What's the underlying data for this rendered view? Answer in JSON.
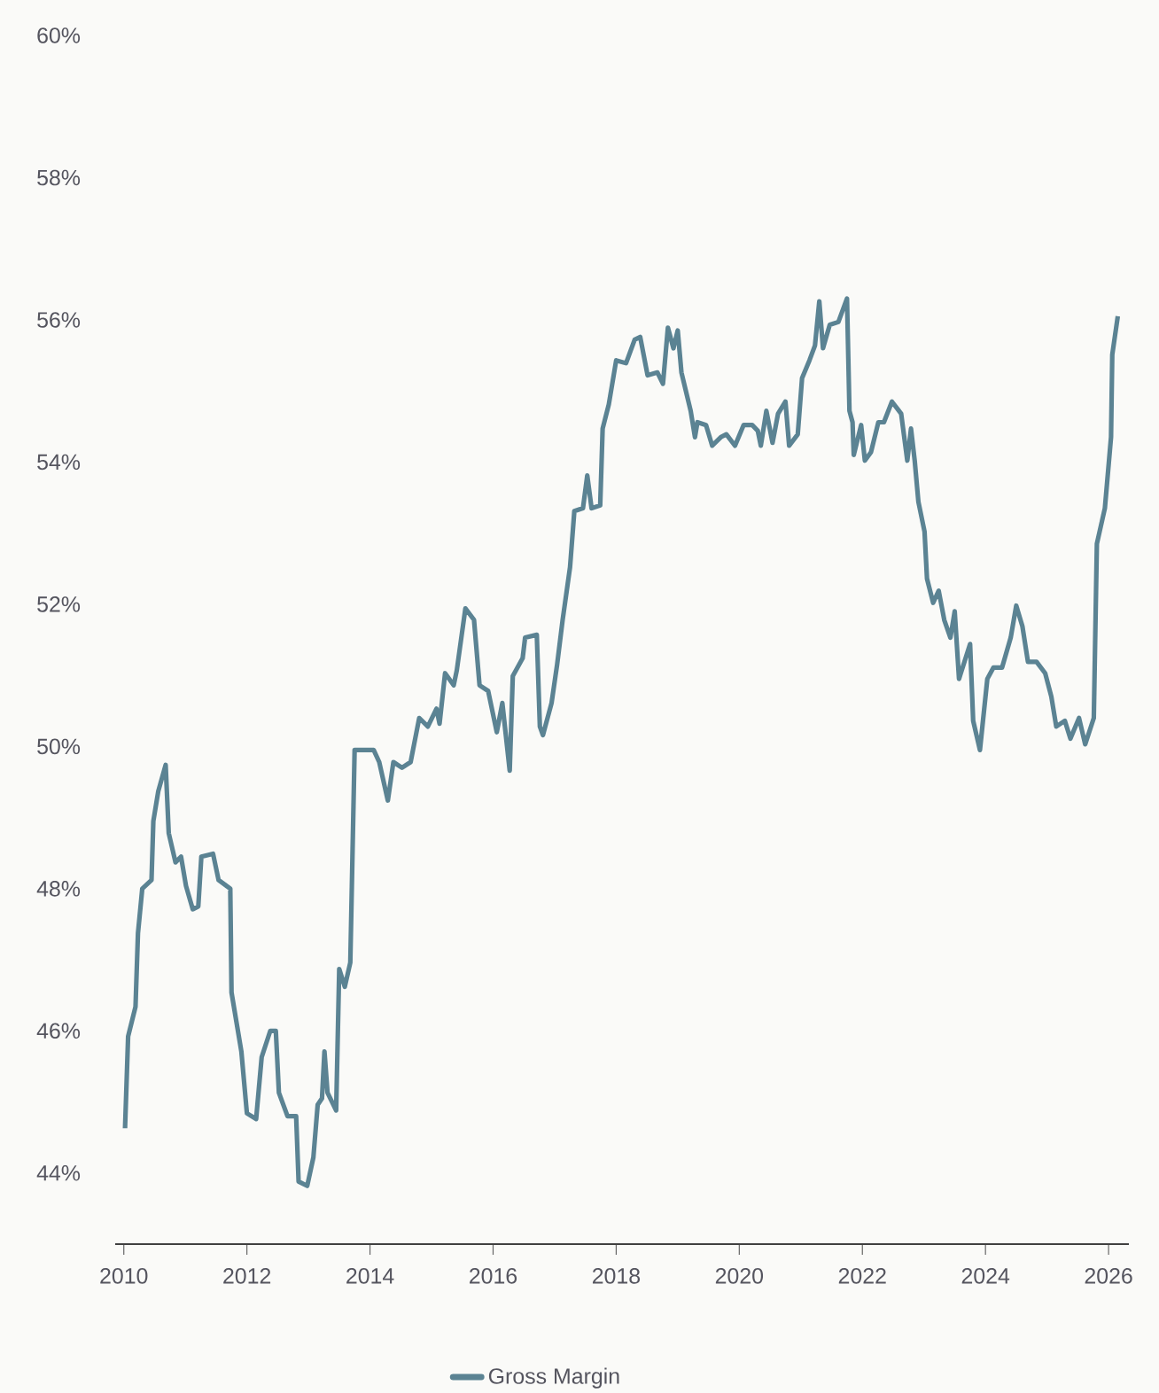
{
  "chart_data": {
    "type": "line",
    "legend": "bottom",
    "line_style": "solid",
    "xlim": [
      2009.86,
      2026.33
    ],
    "ylim": [
      43,
      60
    ],
    "xticks": [
      2010,
      2012,
      2014,
      2016,
      2018,
      2020,
      2022,
      2024,
      2026
    ],
    "yticks": [
      {
        "value": 44,
        "label": "44%"
      },
      {
        "value": 46,
        "label": "46%"
      },
      {
        "value": 48,
        "label": "48%"
      },
      {
        "value": 50,
        "label": "50%"
      },
      {
        "value": 52,
        "label": "52%"
      },
      {
        "value": 54,
        "label": "54%"
      },
      {
        "value": 56,
        "label": "56%"
      },
      {
        "value": 58,
        "label": "58%"
      },
      {
        "value": 60,
        "label": "60%"
      }
    ],
    "series": [
      {
        "name": "Gross Margin",
        "color": "#5b8393",
        "x": [
          2010.02,
          2010.07,
          2010.19,
          2010.23,
          2010.3,
          2010.45,
          2010.48,
          2010.56,
          2010.68,
          2010.73,
          2010.84,
          2010.93,
          2011.01,
          2011.12,
          2011.21,
          2011.26,
          2011.45,
          2011.54,
          2011.73,
          2011.75,
          2011.91,
          2012.0,
          2012.15,
          2012.24,
          2012.38,
          2012.47,
          2012.52,
          2012.66,
          2012.8,
          2012.84,
          2012.98,
          2013.08,
          2013.15,
          2013.22,
          2013.26,
          2013.31,
          2013.45,
          2013.5,
          2013.59,
          2013.68,
          2013.75,
          2014.06,
          2014.15,
          2014.29,
          2014.38,
          2014.52,
          2014.66,
          2014.8,
          2014.94,
          2015.08,
          2015.13,
          2015.22,
          2015.36,
          2015.41,
          2015.55,
          2015.69,
          2015.78,
          2015.92,
          2016.06,
          2016.15,
          2016.27,
          2016.32,
          2016.48,
          2016.52,
          2016.71,
          2016.76,
          2016.81,
          2016.95,
          2017.04,
          2017.13,
          2017.25,
          2017.32,
          2017.46,
          2017.53,
          2017.6,
          2017.74,
          2017.78,
          2017.88,
          2018.0,
          2018.16,
          2018.3,
          2018.39,
          2018.51,
          2018.67,
          2018.76,
          2018.84,
          2018.93,
          2019.0,
          2019.06,
          2019.21,
          2019.28,
          2019.32,
          2019.46,
          2019.56,
          2019.7,
          2019.79,
          2019.93,
          2020.07,
          2020.21,
          2020.3,
          2020.35,
          2020.44,
          2020.54,
          2020.63,
          2020.75,
          2020.81,
          2020.95,
          2021.02,
          2021.14,
          2021.23,
          2021.3,
          2021.36,
          2021.47,
          2021.61,
          2021.75,
          2021.79,
          2021.84,
          2021.86,
          2021.98,
          2022.04,
          2022.14,
          2022.26,
          2022.35,
          2022.48,
          2022.63,
          2022.73,
          2022.79,
          2022.85,
          2022.91,
          2023.01,
          2023.05,
          2023.15,
          2023.24,
          2023.33,
          2023.43,
          2023.5,
          2023.57,
          2023.75,
          2023.8,
          2023.91,
          2024.03,
          2024.13,
          2024.27,
          2024.41,
          2024.5,
          2024.6,
          2024.69,
          2024.83,
          2024.97,
          2025.07,
          2025.15,
          2025.29,
          2025.38,
          2025.52,
          2025.62,
          2025.76,
          2025.81,
          2025.94,
          2026.04,
          2026.06,
          2026.15
        ],
        "values": [
          44.63,
          45.92,
          46.34,
          47.37,
          48.0,
          48.12,
          48.95,
          49.37,
          49.74,
          48.78,
          48.37,
          48.45,
          48.04,
          47.71,
          47.75,
          48.45,
          48.49,
          48.12,
          48.0,
          46.54,
          45.71,
          44.84,
          44.76,
          45.63,
          46.0,
          46.0,
          45.13,
          44.8,
          44.8,
          43.88,
          43.82,
          44.22,
          44.96,
          45.05,
          45.71,
          45.13,
          44.88,
          46.87,
          46.62,
          46.96,
          49.95,
          49.95,
          49.78,
          49.24,
          49.78,
          49.7,
          49.78,
          50.4,
          50.28,
          50.53,
          50.32,
          51.03,
          50.86,
          51.07,
          51.94,
          51.78,
          50.86,
          50.78,
          50.2,
          50.61,
          49.66,
          50.99,
          51.24,
          51.53,
          51.57,
          50.28,
          50.16,
          50.61,
          51.15,
          51.78,
          52.52,
          53.31,
          53.35,
          53.81,
          53.35,
          53.39,
          54.47,
          54.81,
          55.43,
          55.39,
          55.72,
          55.76,
          55.22,
          55.26,
          55.1,
          55.89,
          55.6,
          55.85,
          55.26,
          54.72,
          54.35,
          54.56,
          54.52,
          54.23,
          54.35,
          54.39,
          54.23,
          54.52,
          54.52,
          54.44,
          54.23,
          54.72,
          54.27,
          54.68,
          54.85,
          54.23,
          54.39,
          55.18,
          55.43,
          55.64,
          56.26,
          55.6,
          55.93,
          55.97,
          56.3,
          54.72,
          54.56,
          54.1,
          54.52,
          54.02,
          54.14,
          54.56,
          54.56,
          54.85,
          54.68,
          54.02,
          54.47,
          54.02,
          53.44,
          53.02,
          52.36,
          52.02,
          52.19,
          51.78,
          51.53,
          51.9,
          50.95,
          51.44,
          50.36,
          49.95,
          50.95,
          51.11,
          51.11,
          51.53,
          51.98,
          51.69,
          51.19,
          51.19,
          51.03,
          50.7,
          50.28,
          50.36,
          50.11,
          50.4,
          50.03,
          50.4,
          52.85,
          53.35,
          54.35,
          55.51,
          56.05
        ]
      }
    ]
  }
}
